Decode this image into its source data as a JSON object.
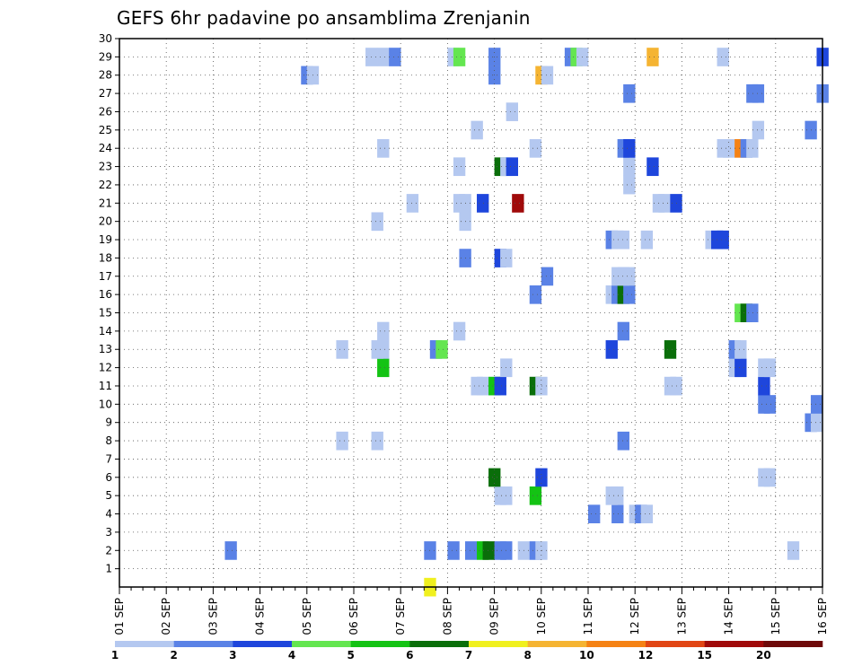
{
  "chart_data": {
    "type": "heatmap",
    "title": "GEFS 6hr padavine po ansamblima Zrenjanin",
    "x_tick_labels": [
      "01 SEP",
      "02 SEP",
      "03 SEP",
      "04 SEP",
      "05 SEP",
      "06 SEP",
      "07 SEP",
      "08 SEP",
      "09 SEP",
      "10 SEP",
      "11 SEP",
      "12 SEP",
      "13 SEP",
      "14 SEP",
      "15 SEP",
      "16 SEP"
    ],
    "y_tick_labels": [
      "1",
      "2",
      "3",
      "4",
      "5",
      "6",
      "7",
      "8",
      "9",
      "10",
      "11",
      "12",
      "13",
      "14",
      "15",
      "16",
      "17",
      "18",
      "19",
      "20",
      "21",
      "22",
      "23",
      "24",
      "25",
      "26",
      "27",
      "28",
      "29",
      "30"
    ],
    "x_range_hours": [
      0,
      360
    ],
    "y_range": [
      0,
      30
    ],
    "step_hours": 6,
    "grid": true,
    "colorbar": {
      "boundaries": [
        "1",
        "2",
        "3",
        "4",
        "5",
        "6",
        "7",
        "8",
        "10",
        "12",
        "15",
        "20"
      ],
      "colors": [
        "#b4c8f0",
        "#5a82e6",
        "#1e46dc",
        "#64e650",
        "#14c314",
        "#0a6e0a",
        "#f0f01e",
        "#f5b432",
        "#f58214",
        "#e14614",
        "#a00a0a",
        "#6e0a0a"
      ]
    },
    "cells": [
      [
        159,
        0,
        6
      ],
      [
        57,
        2,
        1
      ],
      [
        159,
        2,
        1
      ],
      [
        171,
        2,
        1
      ],
      [
        180,
        2,
        1
      ],
      [
        186,
        2,
        4
      ],
      [
        189,
        2,
        5
      ],
      [
        195,
        2,
        1
      ],
      [
        198,
        2,
        1
      ],
      [
        207,
        2,
        0
      ],
      [
        213,
        2,
        1
      ],
      [
        216,
        2,
        0
      ],
      [
        345,
        2,
        0
      ],
      [
        243,
        4,
        1
      ],
      [
        255,
        4,
        1
      ],
      [
        264,
        4,
        0
      ],
      [
        267,
        4,
        1
      ],
      [
        270,
        4,
        0
      ],
      [
        213,
        5,
        4
      ],
      [
        195,
        5,
        0
      ],
      [
        198,
        5,
        0
      ],
      [
        252,
        5,
        0
      ],
      [
        255,
        5,
        0
      ],
      [
        216,
        6,
        2
      ],
      [
        192,
        6,
        5
      ],
      [
        330,
        6,
        0
      ],
      [
        333,
        6,
        0
      ],
      [
        114,
        8,
        0
      ],
      [
        132,
        8,
        0
      ],
      [
        258,
        8,
        1
      ],
      [
        354,
        9,
        1
      ],
      [
        357,
        9,
        0
      ],
      [
        330,
        10,
        1
      ],
      [
        333,
        10,
        1
      ],
      [
        357,
        10,
        1
      ],
      [
        183,
        11,
        0
      ],
      [
        186,
        11,
        0
      ],
      [
        192,
        11,
        4
      ],
      [
        195,
        11,
        2
      ],
      [
        213,
        11,
        5
      ],
      [
        216,
        11,
        0
      ],
      [
        282,
        11,
        0
      ],
      [
        285,
        11,
        0
      ],
      [
        330,
        11,
        2
      ],
      [
        135,
        12,
        4
      ],
      [
        198,
        12,
        0
      ],
      [
        315,
        12,
        0
      ],
      [
        318,
        12,
        2
      ],
      [
        330,
        12,
        0
      ],
      [
        333,
        12,
        0
      ],
      [
        114,
        13,
        0
      ],
      [
        132,
        13,
        0
      ],
      [
        135,
        13,
        0
      ],
      [
        162,
        13,
        1
      ],
      [
        165,
        13,
        3
      ],
      [
        252,
        13,
        2
      ],
      [
        282,
        13,
        5
      ],
      [
        315,
        13,
        1
      ],
      [
        318,
        13,
        0
      ],
      [
        135,
        14,
        0
      ],
      [
        174,
        14,
        0
      ],
      [
        258,
        14,
        1
      ],
      [
        318,
        15,
        3
      ],
      [
        321,
        15,
        5
      ],
      [
        324,
        15,
        1
      ],
      [
        213,
        16,
        1
      ],
      [
        252,
        16,
        0
      ],
      [
        255,
        16,
        1
      ],
      [
        258,
        16,
        5
      ],
      [
        261,
        16,
        1
      ],
      [
        219,
        17,
        1
      ],
      [
        255,
        17,
        0
      ],
      [
        258,
        17,
        0
      ],
      [
        261,
        17,
        0
      ],
      [
        177,
        18,
        1
      ],
      [
        195,
        18,
        2
      ],
      [
        198,
        18,
        0
      ],
      [
        252,
        19,
        1
      ],
      [
        255,
        19,
        0
      ],
      [
        258,
        19,
        0
      ],
      [
        270,
        19,
        0
      ],
      [
        303,
        19,
        0
      ],
      [
        306,
        19,
        2
      ],
      [
        309,
        19,
        2
      ],
      [
        177,
        20,
        0
      ],
      [
        132,
        20,
        0
      ],
      [
        150,
        21,
        0
      ],
      [
        174,
        21,
        0
      ],
      [
        177,
        21,
        0
      ],
      [
        186,
        21,
        2
      ],
      [
        204,
        21,
        10
      ],
      [
        276,
        21,
        0
      ],
      [
        279,
        21,
        0
      ],
      [
        285,
        21,
        2
      ],
      [
        261,
        22,
        0
      ],
      [
        174,
        23,
        0
      ],
      [
        195,
        23,
        5
      ],
      [
        198,
        23,
        0
      ],
      [
        201,
        23,
        2
      ],
      [
        261,
        23,
        0
      ],
      [
        273,
        23,
        2
      ],
      [
        135,
        24,
        0
      ],
      [
        213,
        24,
        0
      ],
      [
        258,
        24,
        1
      ],
      [
        261,
        24,
        2
      ],
      [
        309,
        24,
        0
      ],
      [
        312,
        24,
        0
      ],
      [
        318,
        24,
        8
      ],
      [
        321,
        24,
        1
      ],
      [
        324,
        24,
        0
      ],
      [
        183,
        25,
        0
      ],
      [
        327,
        25,
        0
      ],
      [
        354,
        25,
        1
      ],
      [
        201,
        26,
        0
      ],
      [
        261,
        27,
        1
      ],
      [
        324,
        27,
        1
      ],
      [
        327,
        27,
        1
      ],
      [
        360,
        27,
        1
      ],
      [
        96,
        28,
        1
      ],
      [
        99,
        28,
        0
      ],
      [
        192,
        28,
        1
      ],
      [
        216,
        28,
        7
      ],
      [
        219,
        28,
        0
      ],
      [
        129,
        29,
        0
      ],
      [
        135,
        29,
        0
      ],
      [
        141,
        29,
        1
      ],
      [
        171,
        29,
        0
      ],
      [
        174,
        29,
        3
      ],
      [
        192,
        29,
        1
      ],
      [
        231,
        29,
        1
      ],
      [
        234,
        29,
        3
      ],
      [
        237,
        29,
        0
      ],
      [
        273,
        29,
        7
      ],
      [
        309,
        29,
        0
      ],
      [
        360,
        29,
        2
      ]
    ]
  }
}
